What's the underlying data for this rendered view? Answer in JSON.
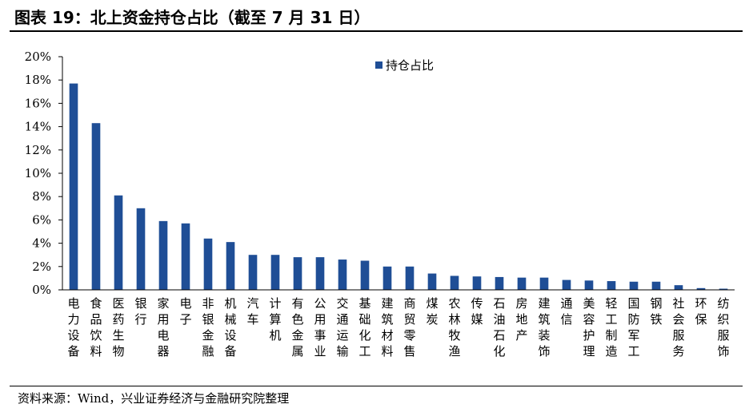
{
  "figure": {
    "title": "图表 19：北上资金持仓占比（截至 7 月 31 日）",
    "source": "资料来源：Wind，兴业证券经济与金融研究院整理"
  },
  "colors": {
    "bar": "#1f4e96",
    "axis": "#000000"
  },
  "chart_data": {
    "type": "bar",
    "title": "图表 19：北上资金持仓占比（截至 7 月 31 日）",
    "xlabel": "",
    "ylabel": "",
    "ylim": [
      0,
      20
    ],
    "ytick_values": [
      0,
      2,
      4,
      6,
      8,
      10,
      12,
      14,
      16,
      18,
      20
    ],
    "ytick_labels": [
      "0%",
      "2%",
      "4%",
      "6%",
      "8%",
      "10%",
      "12%",
      "14%",
      "16%",
      "18%",
      "20%"
    ],
    "grid": false,
    "legend_position": "top-right",
    "categories": [
      "电力设备",
      "食品饮料",
      "医药生物",
      "银行",
      "家用电器",
      "电子",
      "非银金融",
      "机械设备",
      "汽车",
      "计算机",
      "有色金属",
      "公用事业",
      "交通运输",
      "基础化工",
      "建筑材料",
      "商贸零售",
      "煤炭",
      "农林牧渔",
      "传媒",
      "石油石化",
      "房地产",
      "建筑装饰",
      "通信",
      "美容护理",
      "轻工制造",
      "国防军工",
      "钢铁",
      "社会服务",
      "环保",
      "纺织服饰"
    ],
    "series": [
      {
        "name": "持仓占比",
        "values": [
          17.7,
          14.3,
          8.1,
          7.0,
          5.9,
          5.7,
          4.4,
          4.1,
          3.0,
          3.0,
          2.8,
          2.8,
          2.6,
          2.5,
          2.0,
          2.0,
          1.4,
          1.2,
          1.15,
          1.1,
          1.05,
          1.05,
          0.85,
          0.8,
          0.75,
          0.7,
          0.7,
          0.4,
          0.15,
          0.1
        ]
      }
    ]
  }
}
